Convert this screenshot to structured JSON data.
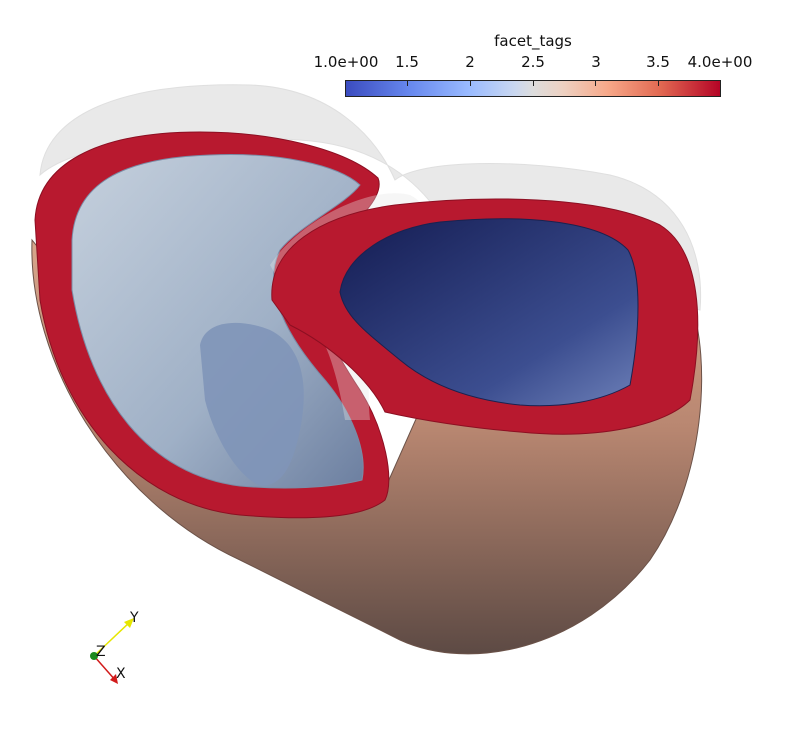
{
  "legend": {
    "title": "facet_tags",
    "ticks": [
      "1.0e+00",
      "1.5",
      "2",
      "2.5",
      "3",
      "3.5",
      "4.0e+00"
    ],
    "range": [
      1.0,
      4.0
    ],
    "colormap": "cool-to-warm"
  },
  "axes": {
    "x_label": "X",
    "y_label": "Y",
    "z_label": "Z",
    "x_color": "#d21b1b",
    "y_color": "#e6e600",
    "z_color": "#1c8a1c"
  },
  "colors": {
    "background": "#ffffff",
    "epicardium": "#b08472",
    "base_ring": "#b8192f",
    "lv_endocardium": "#a8b8cc",
    "rv_endocardium": "#283878",
    "outer_shell": "#d8d8d8"
  }
}
